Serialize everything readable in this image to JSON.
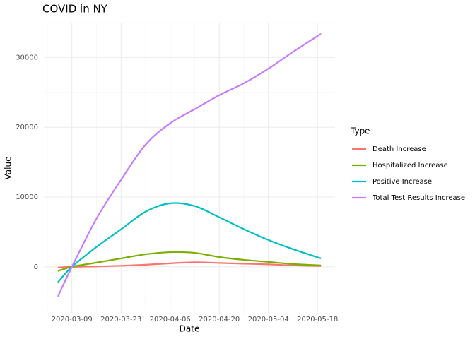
{
  "chart_data": {
    "type": "line",
    "title": "COVID in NY",
    "x_label": "Date",
    "y_label": "Value",
    "legend_title": "Type",
    "legend_position": "right",
    "grid": true,
    "x": [
      "2020-03-05",
      "2020-03-09",
      "2020-03-16",
      "2020-03-23",
      "2020-03-30",
      "2020-04-06",
      "2020-04-13",
      "2020-04-20",
      "2020-04-27",
      "2020-05-04",
      "2020-05-11",
      "2020-05-19"
    ],
    "xlim": [
      "2020-03-01",
      "2020-05-23"
    ],
    "xticks": [
      "2020-03-09",
      "2020-03-23",
      "2020-04-06",
      "2020-04-20",
      "2020-05-04",
      "2020-05-18"
    ],
    "ylim": [
      -6800,
      35000
    ],
    "yticks": [
      0,
      10000,
      20000,
      30000
    ],
    "series": [
      {
        "name": "Death Increase",
        "color": "#F8766D",
        "values": [
          -100,
          0,
          50,
          150,
          300,
          500,
          650,
          550,
          450,
          350,
          200,
          100
        ]
      },
      {
        "name": "Hospitalized Increase",
        "color": "#7CAE00",
        "values": [
          -600,
          0,
          600,
          1200,
          1800,
          2100,
          2000,
          1400,
          1000,
          700,
          400,
          200
        ]
      },
      {
        "name": "Positive Increase",
        "color": "#00BFC4",
        "values": [
          -2230,
          0,
          2840,
          5370,
          7900,
          9100,
          8700,
          7100,
          5400,
          3850,
          2530,
          1200
        ]
      },
      {
        "name": "Total Test Results Increase",
        "color": "#C77CFF",
        "values": [
          -4250,
          0,
          6900,
          12460,
          17500,
          20570,
          22600,
          24600,
          26300,
          28400,
          30800,
          33400
        ]
      }
    ]
  }
}
